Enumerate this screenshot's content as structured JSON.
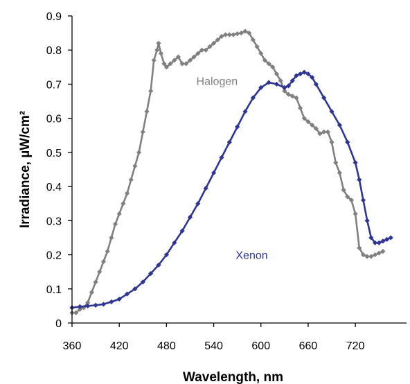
{
  "chart_data": {
    "type": "line",
    "xlabel": "Wavelength, nm",
    "ylabel": "Irradiance, µW/cm²",
    "xlim": [
      360,
      785
    ],
    "ylim": [
      0,
      0.9
    ],
    "x_ticks": [
      "360",
      "420",
      "480",
      "540",
      "600",
      "660",
      "720"
    ],
    "y_ticks": [
      "0",
      "0.1",
      "0.2",
      "0.3",
      "0.4",
      "0.5",
      "0.6",
      "0.7",
      "0.8",
      "0.9"
    ],
    "grid": false,
    "series": [
      {
        "name": "Halogen",
        "color": "#808080",
        "marker": "diamond",
        "points": [
          [
            360,
            0.03
          ],
          [
            365,
            0.03
          ],
          [
            370,
            0.04
          ],
          [
            375,
            0.045
          ],
          [
            380,
            0.06
          ],
          [
            385,
            0.09
          ],
          [
            390,
            0.12
          ],
          [
            395,
            0.15
          ],
          [
            400,
            0.18
          ],
          [
            405,
            0.21
          ],
          [
            410,
            0.25
          ],
          [
            415,
            0.29
          ],
          [
            420,
            0.32
          ],
          [
            425,
            0.35
          ],
          [
            430,
            0.38
          ],
          [
            435,
            0.42
          ],
          [
            440,
            0.46
          ],
          [
            445,
            0.5
          ],
          [
            450,
            0.56
          ],
          [
            455,
            0.62
          ],
          [
            460,
            0.68
          ],
          [
            464,
            0.77
          ],
          [
            468,
            0.8
          ],
          [
            470,
            0.82
          ],
          [
            473,
            0.79
          ],
          [
            477,
            0.76
          ],
          [
            480,
            0.75
          ],
          [
            485,
            0.76
          ],
          [
            490,
            0.77
          ],
          [
            495,
            0.78
          ],
          [
            500,
            0.76
          ],
          [
            505,
            0.76
          ],
          [
            510,
            0.77
          ],
          [
            515,
            0.78
          ],
          [
            520,
            0.79
          ],
          [
            525,
            0.8
          ],
          [
            530,
            0.8
          ],
          [
            535,
            0.81
          ],
          [
            540,
            0.82
          ],
          [
            545,
            0.83
          ],
          [
            550,
            0.84
          ],
          [
            555,
            0.845
          ],
          [
            560,
            0.845
          ],
          [
            565,
            0.845
          ],
          [
            570,
            0.848
          ],
          [
            575,
            0.85
          ],
          [
            580,
            0.855
          ],
          [
            585,
            0.85
          ],
          [
            590,
            0.83
          ],
          [
            595,
            0.81
          ],
          [
            600,
            0.79
          ],
          [
            605,
            0.77
          ],
          [
            610,
            0.76
          ],
          [
            615,
            0.75
          ],
          [
            620,
            0.73
          ],
          [
            625,
            0.71
          ],
          [
            630,
            0.68
          ],
          [
            635,
            0.67
          ],
          [
            640,
            0.665
          ],
          [
            645,
            0.66
          ],
          [
            650,
            0.63
          ],
          [
            655,
            0.6
          ],
          [
            660,
            0.59
          ],
          [
            665,
            0.58
          ],
          [
            670,
            0.57
          ],
          [
            675,
            0.555
          ],
          [
            680,
            0.56
          ],
          [
            685,
            0.56
          ],
          [
            690,
            0.53
          ],
          [
            695,
            0.47
          ],
          [
            700,
            0.44
          ],
          [
            705,
            0.39
          ],
          [
            710,
            0.37
          ],
          [
            715,
            0.36
          ],
          [
            720,
            0.32
          ],
          [
            725,
            0.22
          ],
          [
            730,
            0.2
          ],
          [
            735,
            0.195
          ],
          [
            740,
            0.195
          ],
          [
            745,
            0.2
          ],
          [
            750,
            0.205
          ],
          [
            755,
            0.21
          ]
        ]
      },
      {
        "name": "Xenon",
        "color": "#2e3592",
        "marker": "diamond",
        "points": [
          [
            360,
            0.045
          ],
          [
            370,
            0.048
          ],
          [
            380,
            0.05
          ],
          [
            390,
            0.052
          ],
          [
            400,
            0.055
          ],
          [
            410,
            0.062
          ],
          [
            420,
            0.07
          ],
          [
            430,
            0.085
          ],
          [
            440,
            0.1
          ],
          [
            450,
            0.12
          ],
          [
            460,
            0.145
          ],
          [
            470,
            0.17
          ],
          [
            480,
            0.2
          ],
          [
            490,
            0.235
          ],
          [
            500,
            0.27
          ],
          [
            510,
            0.31
          ],
          [
            520,
            0.35
          ],
          [
            530,
            0.395
          ],
          [
            540,
            0.44
          ],
          [
            550,
            0.485
          ],
          [
            560,
            0.53
          ],
          [
            570,
            0.575
          ],
          [
            580,
            0.62
          ],
          [
            590,
            0.66
          ],
          [
            600,
            0.69
          ],
          [
            610,
            0.705
          ],
          [
            620,
            0.7
          ],
          [
            630,
            0.69
          ],
          [
            635,
            0.695
          ],
          [
            640,
            0.71
          ],
          [
            645,
            0.725
          ],
          [
            650,
            0.73
          ],
          [
            655,
            0.735
          ],
          [
            660,
            0.73
          ],
          [
            665,
            0.72
          ],
          [
            670,
            0.7
          ],
          [
            680,
            0.66
          ],
          [
            690,
            0.62
          ],
          [
            700,
            0.58
          ],
          [
            710,
            0.53
          ],
          [
            720,
            0.47
          ],
          [
            725,
            0.42
          ],
          [
            730,
            0.36
          ],
          [
            735,
            0.3
          ],
          [
            740,
            0.25
          ],
          [
            745,
            0.235
          ],
          [
            750,
            0.235
          ],
          [
            755,
            0.24
          ],
          [
            760,
            0.245
          ],
          [
            765,
            0.25
          ]
        ]
      }
    ],
    "annotations": [
      {
        "text": "Halogen",
        "x": 518,
        "y": 0.71,
        "color": "#808080"
      },
      {
        "text": "Xenon",
        "x": 568,
        "y": 0.2,
        "color": "#2e3592"
      }
    ]
  }
}
